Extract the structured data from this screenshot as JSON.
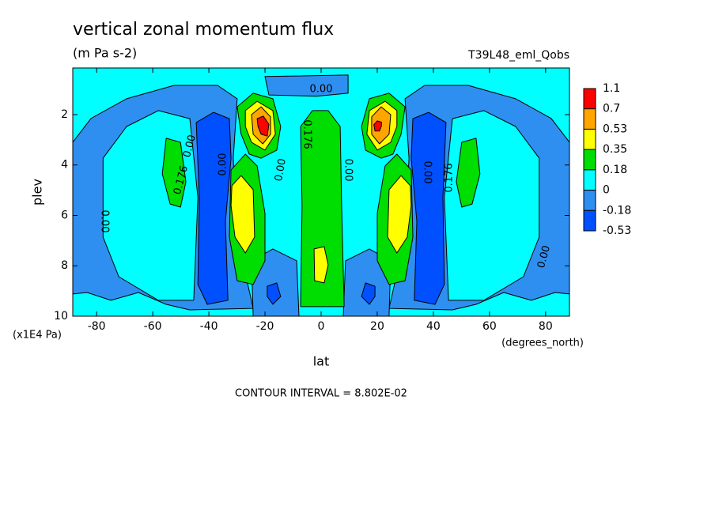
{
  "chart_data": {
    "type": "contour",
    "title": "vertical zonal momentum flux",
    "subtitle": "(m Pa s-2)",
    "dataset": "T39L48_eml_Qobs",
    "xlabel": "lat",
    "xunits": "(degrees_north)",
    "ylabel": "plev",
    "yunits": "(x1E4 Pa)",
    "footnote": "CONTOUR INTERVAL = 8.802E-02",
    "xlim": [
      -88.5,
      88.5
    ],
    "xticks": [
      -80,
      -60,
      -40,
      -20,
      0,
      20,
      40,
      60,
      80
    ],
    "ylim": [
      10,
      0.15
    ],
    "yticks": [
      2,
      4,
      6,
      8,
      10
    ],
    "levels": [
      1.1,
      0.7,
      0.53,
      0.35,
      0.18,
      0,
      -0.18,
      -0.53
    ],
    "colors": [
      "#ff0000",
      "#ffa500",
      "#ffff00",
      "#00dd00",
      "#00ffff",
      "#2f8ff0",
      "#0050ff"
    ],
    "background_range": [
      0,
      0.18
    ],
    "contour_labels": [
      "0.00",
      "0.176",
      "0.00",
      "0.176",
      "0.00",
      "0.00",
      "0.00",
      "0.00",
      "0.176",
      "0.00",
      "0.00"
    ],
    "regions": [
      {
        "range": [
          -0.18,
          0
        ],
        "lat": [
          -88.5,
          -82,
          -69.3,
          -52.4,
          -36.9,
          -29.9,
          -31.3,
          -29.9,
          -24.2,
          -46.8,
          -55.2,
          -65.1,
          -74.9,
          -83.4,
          -88.5
        ],
        "plev": [
          3.1,
          2.15,
          1.37,
          0.84,
          0.84,
          1.37,
          3.73,
          6.86,
          9.69,
          9.75,
          9.53,
          9.06,
          9.37,
          9.06,
          9.12
        ]
      },
      {
        "range": [
          -0.18,
          0
        ],
        "lat": [
          88.5,
          82,
          69.3,
          52.4,
          36.9,
          29.9,
          31.3,
          29.9,
          24.2,
          46.8,
          55.2,
          65.1,
          74.9,
          83.4,
          88.5
        ],
        "plev": [
          3.1,
          2.15,
          1.37,
          0.84,
          0.84,
          1.37,
          3.73,
          6.86,
          9.69,
          9.75,
          9.53,
          9.06,
          9.37,
          9.06,
          9.12
        ]
      },
      {
        "range": [
          0,
          0.18
        ],
        "lat": [
          -77.7,
          -69.3,
          -58,
          -46.8,
          -43.9,
          -45.4,
          -58,
          -72.1,
          -77.7
        ],
        "plev": [
          3.73,
          2.47,
          1.84,
          2.16,
          5.29,
          9.37,
          9.37,
          8.43,
          6.86
        ]
      },
      {
        "range": [
          0,
          0.18
        ],
        "lat": [
          77.7,
          69.3,
          58,
          46.8,
          43.9,
          45.4,
          58,
          72.1,
          77.7
        ],
        "plev": [
          3.73,
          2.47,
          1.84,
          2.16,
          5.29,
          9.37,
          9.37,
          8.43,
          6.86
        ]
      },
      {
        "range": [
          -0.53,
          -0.18
        ],
        "lat": [
          -44.5,
          -38.3,
          -32.7,
          -32.1,
          -34.1,
          -33.2,
          -40.6,
          -43.9,
          -43.4
        ],
        "plev": [
          2.31,
          1.91,
          2.16,
          3.73,
          6.24,
          9.37,
          9.53,
          8.74,
          5.29
        ]
      },
      {
        "range": [
          -0.53,
          -0.18
        ],
        "lat": [
          44.5,
          38.3,
          32.7,
          32.1,
          34.1,
          33.2,
          40.6,
          43.9,
          43.4
        ],
        "plev": [
          2.31,
          1.91,
          2.16,
          3.73,
          6.24,
          9.37,
          9.53,
          8.74,
          5.29
        ]
      },
      {
        "range": [
          0.18,
          0.35
        ],
        "lat": [
          -55.2,
          -50.1,
          -48.2,
          -50.1,
          -53.8,
          -56.6
        ],
        "plev": [
          2.94,
          3.1,
          4.67,
          5.67,
          5.55,
          4.35
        ]
      },
      {
        "range": [
          0.18,
          0.35
        ],
        "lat": [
          55.2,
          50.1,
          48.2,
          50.1,
          53.8,
          56.6
        ],
        "plev": [
          2.94,
          3.1,
          4.67,
          5.67,
          5.55,
          4.35
        ]
      },
      {
        "range": [
          -0.18,
          0
        ],
        "lat": [
          -24.8,
          -17.2,
          -8.7,
          -7.9,
          -24.2
        ],
        "plev": [
          7.8,
          7.33,
          7.8,
          10,
          10
        ]
      },
      {
        "range": [
          -0.18,
          0
        ],
        "lat": [
          24.8,
          17.2,
          8.7,
          7.9,
          24.2
        ],
        "plev": [
          7.8,
          7.33,
          7.8,
          10,
          10
        ]
      },
      {
        "range": [
          -0.53,
          -0.18
        ],
        "lat": [
          -19.2,
          -15.8,
          -14.4,
          -17.2,
          -19.2
        ],
        "plev": [
          8.81,
          8.68,
          9.22,
          9.53,
          9.22
        ]
      },
      {
        "range": [
          -0.53,
          -0.18
        ],
        "lat": [
          19.2,
          15.8,
          14.4,
          17.2,
          19.2
        ],
        "plev": [
          8.81,
          8.68,
          9.22,
          9.53,
          9.22
        ]
      },
      {
        "range": [
          0.18,
          0.35
        ],
        "lat": [
          -32.1,
          -27,
          -22.8,
          -20,
          -20,
          -24.2,
          -29.9,
          -32.7
        ],
        "plev": [
          4.2,
          3.57,
          4.04,
          5.92,
          7.8,
          8.74,
          8.59,
          6.86
        ]
      },
      {
        "range": [
          0.18,
          0.35
        ],
        "lat": [
          32.1,
          27,
          22.8,
          20,
          20,
          24.2,
          29.9,
          32.7
        ],
        "plev": [
          4.2,
          3.57,
          4.04,
          5.92,
          7.8,
          8.74,
          8.59,
          6.86
        ]
      },
      {
        "range": [
          0.35,
          0.53
        ],
        "lat": [
          -31.8,
          -28.5,
          -24.2,
          -23.7,
          -27,
          -30.7,
          -32.1
        ],
        "plev": [
          4.82,
          4.42,
          4.98,
          6.86,
          7.49,
          6.86,
          5.61
        ]
      },
      {
        "range": [
          0.35,
          0.53
        ],
        "lat": [
          31.8,
          28.5,
          24.2,
          23.7,
          27,
          30.7,
          32.1
        ],
        "plev": [
          4.82,
          4.42,
          4.98,
          6.86,
          7.49,
          6.86,
          5.61
        ]
      },
      {
        "range": [
          0.18,
          0.35
        ],
        "lat": [
          -29.9,
          -24.2,
          -17.2,
          -14.4,
          -15.8,
          -21.4,
          -25.6,
          -28.5
        ],
        "plev": [
          1.69,
          1.15,
          1.37,
          2.47,
          3.41,
          3.73,
          3.57,
          2.78
        ]
      },
      {
        "range": [
          0.18,
          0.35
        ],
        "lat": [
          29.9,
          24.2,
          17.2,
          14.4,
          15.8,
          21.4,
          25.6,
          28.5
        ],
        "plev": [
          1.69,
          1.15,
          1.37,
          2.47,
          3.41,
          3.73,
          3.57,
          2.78
        ]
      },
      {
        "range": [
          0.35,
          0.53
        ],
        "lat": [
          -27,
          -22.8,
          -17.2,
          -16.3,
          -20,
          -24.8,
          -27
        ],
        "plev": [
          1.84,
          1.47,
          1.84,
          2.78,
          3.41,
          3.1,
          2.47
        ]
      },
      {
        "range": [
          0.35,
          0.53
        ],
        "lat": [
          27,
          22.8,
          17.2,
          16.3,
          20,
          24.8,
          27
        ],
        "plev": [
          1.84,
          1.47,
          1.84,
          2.78,
          3.41,
          3.1,
          2.47
        ]
      },
      {
        "range": [
          0.53,
          0.7
        ],
        "lat": [
          -24.8,
          -21.4,
          -18,
          -18,
          -20.8,
          -24.2
        ],
        "plev": [
          2,
          1.69,
          2.09,
          2.78,
          3.16,
          2.78
        ]
      },
      {
        "range": [
          0.53,
          0.7
        ],
        "lat": [
          24.8,
          21.4,
          18,
          18,
          20.8,
          24.2
        ],
        "plev": [
          2,
          1.69,
          2.09,
          2.78,
          3.16,
          2.78
        ]
      },
      {
        "range": [
          0.7,
          1.1
        ],
        "lat": [
          -22.8,
          -20.6,
          -18.6,
          -19.2,
          -21.4,
          -22.5
        ],
        "plev": [
          2.16,
          2.06,
          2.38,
          2.85,
          2.78,
          2.47
        ]
      },
      {
        "range": [
          0.7,
          1.1
        ],
        "lat": [
          21.5,
          20,
          18.8,
          19.2,
          20.8,
          21.5
        ],
        "plev": [
          2.3,
          2.25,
          2.4,
          2.65,
          2.65,
          2.45
        ]
      },
      {
        "range": [
          0.18,
          0.35
        ],
        "lat": [
          -7.3,
          -3.1,
          2.5,
          6.8,
          7.3,
          8.2,
          -7.3,
          -6.8
        ],
        "plev": [
          2.47,
          1.84,
          1.84,
          2.47,
          5.61,
          9.62,
          9.62,
          5.61
        ]
      },
      {
        "range": [
          0.35,
          0.53
        ],
        "lat": [
          -2.5,
          1.1,
          2.5,
          1.1,
          -2.3
        ],
        "plev": [
          7.33,
          7.24,
          7.96,
          8.68,
          8.59
        ]
      },
      {
        "range": [
          -0.18,
          0
        ],
        "lat": [
          -20,
          9.6,
          9.6,
          -1.7,
          -18.6
        ],
        "plev": [
          0.49,
          0.43,
          1.15,
          1.27,
          1.22
        ]
      }
    ]
  }
}
